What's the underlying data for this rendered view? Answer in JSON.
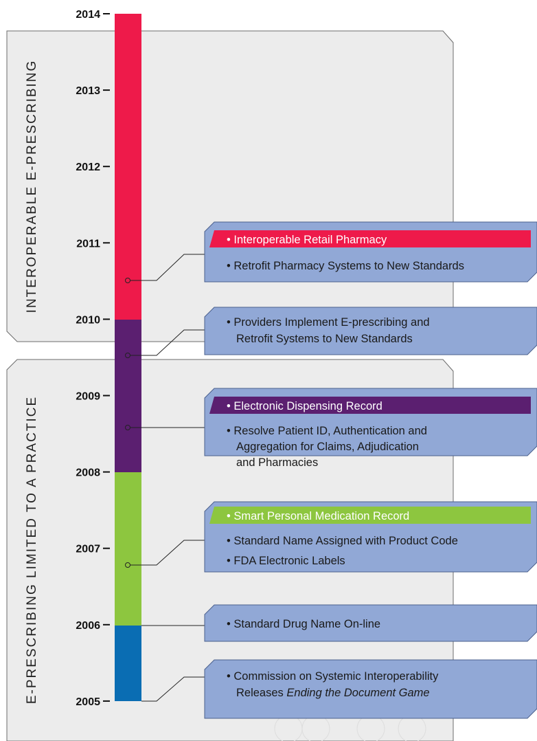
{
  "years": [
    "2014",
    "2013",
    "2012",
    "2011",
    "2010",
    "2009",
    "2008",
    "2007",
    "2006",
    "2005"
  ],
  "phases": [
    "INTEROPERABLE E-PRESCRIBING",
    "E-PRESCRIBING LIMITED TO A PRACTICE"
  ],
  "events": [
    {
      "header": "• Interoperable Retail Pharmacy",
      "lines": [
        "• Retrofit Pharmacy Systems to New Standards"
      ]
    },
    {
      "lines": [
        "• Providers Implement E-prescribing and",
        "Retrofit Systems to New Standards"
      ]
    },
    {
      "header": "• Electronic Dispensing Record",
      "lines": [
        "• Resolve Patient ID, Authentication and",
        "Aggregation for Claims, Adjudication",
        "and Pharmacies"
      ]
    },
    {
      "header": "• Smart Personal Medication Record",
      "lines": [
        "• Standard Name Assigned with Product Code",
        "• FDA Electronic Labels"
      ]
    },
    {
      "lines": [
        "• Standard Drug Name On-line"
      ]
    },
    {
      "lines": [
        "• Commission on Systemic Interoperability",
        "Releases"
      ],
      "italic": "Ending the Document Game"
    }
  ]
}
